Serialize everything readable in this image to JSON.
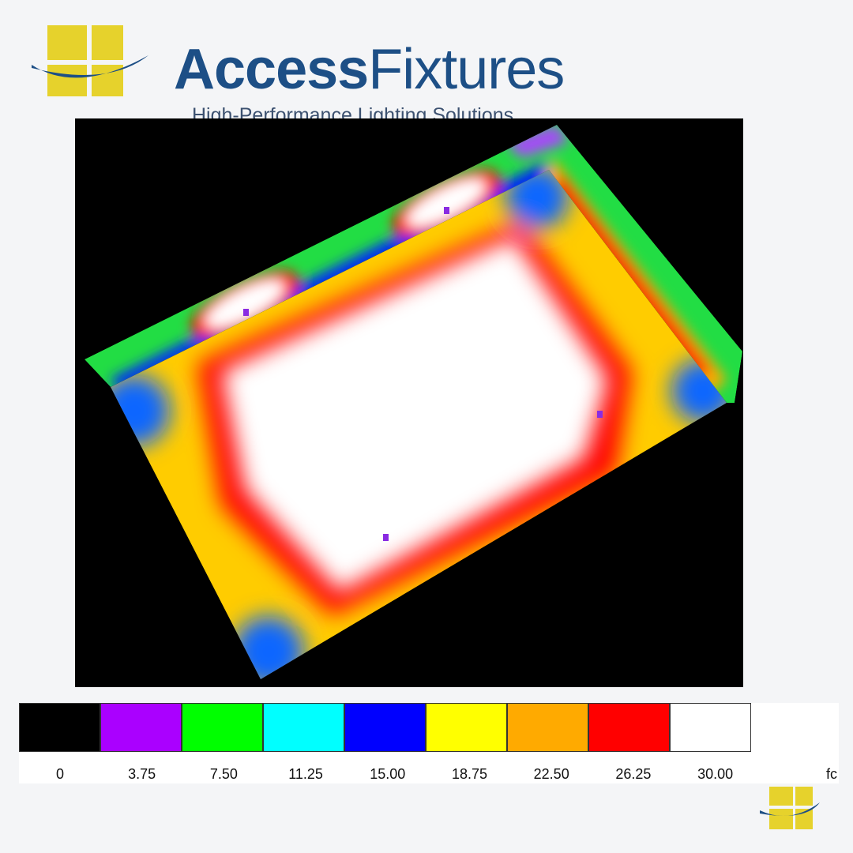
{
  "brand": {
    "name_bold": "Access",
    "name_regular": "Fixtures",
    "tagline": "High-Performance Lighting Solutions",
    "colors": {
      "blue": "#1d4f86",
      "yellow": "#e6d22c"
    }
  },
  "chart_data": {
    "type": "heatmap",
    "description_type": "false-color illuminance rendering",
    "legend": {
      "unit": "fc",
      "ticks": [
        "0",
        "3.75",
        "7.50",
        "11.25",
        "15.00",
        "18.75",
        "22.50",
        "26.25",
        "30.00"
      ],
      "colors": [
        "#000000",
        "#aa00ff",
        "#00ff00",
        "#00ffff",
        "#0000ff",
        "#ffff00",
        "#ffaa00",
        "#ff0000",
        "#ffffff"
      ]
    },
    "fixtures": 4
  }
}
